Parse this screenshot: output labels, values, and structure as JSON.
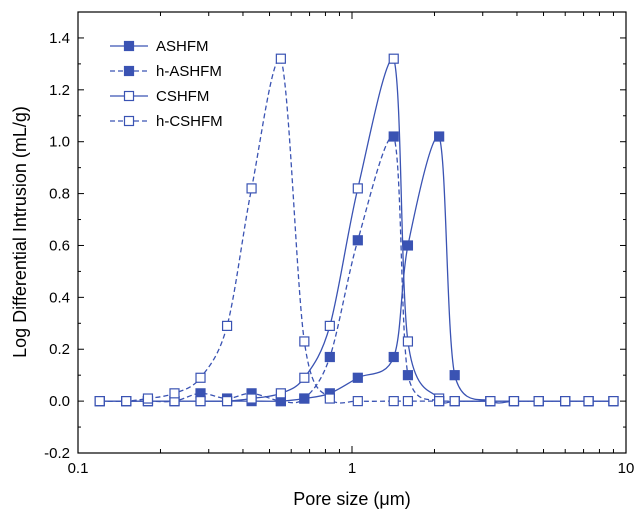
{
  "chart_data": {
    "type": "line",
    "xlabel": "Pore size (μm)",
    "ylabel": "Log Differential Intrusion (mL/g)",
    "xscale": "log",
    "xlim": [
      0.1,
      10
    ],
    "ylim": [
      -0.2,
      1.5
    ],
    "xticks": [
      {
        "value": 0.1,
        "label": "0.1"
      },
      {
        "value": 1,
        "label": "1"
      },
      {
        "value": 10,
        "label": "10"
      }
    ],
    "yticks": [
      {
        "value": -0.2,
        "label": "-0.2"
      },
      {
        "value": 0.0,
        "label": "0.0"
      },
      {
        "value": 0.2,
        "label": "0.2"
      },
      {
        "value": 0.4,
        "label": "0.4"
      },
      {
        "value": 0.6,
        "label": "0.6"
      },
      {
        "value": 0.8,
        "label": "0.8"
      },
      {
        "value": 1.0,
        "label": "1.0"
      },
      {
        "value": 1.2,
        "label": "1.2"
      },
      {
        "value": 1.4,
        "label": "1.4"
      }
    ],
    "legend_position": "top-left",
    "color": "#3a53b3",
    "series": [
      {
        "name": "ASHFM",
        "marker": "filled-square",
        "line": "solid",
        "x": [
          0.12,
          0.15,
          0.18,
          0.225,
          0.28,
          0.35,
          0.43,
          0.55,
          0.67,
          0.83,
          1.05,
          1.42,
          1.6,
          2.08,
          2.37,
          3.2,
          3.9,
          4.8,
          6.0,
          7.3,
          9.0
        ],
        "y": [
          0.0,
          0.0,
          0.0,
          0.0,
          0.0,
          0.0,
          0.0,
          0.0,
          0.01,
          0.03,
          0.09,
          0.17,
          0.6,
          1.02,
          0.1,
          0.0,
          0.0,
          0.0,
          0.0,
          0.0,
          0.0
        ]
      },
      {
        "name": "h-ASHFM",
        "marker": "filled-square",
        "line": "dashed",
        "x": [
          0.12,
          0.15,
          0.18,
          0.225,
          0.28,
          0.35,
          0.43,
          0.55,
          0.67,
          0.83,
          1.05,
          1.42,
          1.6,
          2.08,
          2.37,
          3.2,
          3.9,
          4.8,
          6.0,
          7.3,
          9.0
        ],
        "y": [
          0.0,
          0.0,
          0.0,
          0.0,
          0.03,
          0.01,
          0.03,
          0.0,
          0.01,
          0.17,
          0.62,
          1.02,
          0.1,
          0.0,
          0.0,
          0.0,
          0.0,
          0.0,
          0.0,
          0.0,
          0.0
        ]
      },
      {
        "name": "CSHFM",
        "marker": "open-square",
        "line": "solid",
        "x": [
          0.12,
          0.15,
          0.18,
          0.225,
          0.28,
          0.35,
          0.43,
          0.55,
          0.67,
          0.83,
          1.05,
          1.42,
          1.6,
          2.08,
          2.37,
          3.2,
          3.9,
          4.8,
          6.0,
          7.3,
          9.0
        ],
        "y": [
          0.0,
          0.0,
          0.0,
          0.0,
          0.0,
          0.0,
          0.01,
          0.03,
          0.09,
          0.29,
          0.82,
          1.32,
          0.23,
          0.01,
          0.0,
          0.0,
          0.0,
          0.0,
          0.0,
          0.0,
          0.0
        ]
      },
      {
        "name": "h-CSHFM",
        "marker": "open-square",
        "line": "dashed",
        "x": [
          0.12,
          0.15,
          0.18,
          0.225,
          0.28,
          0.35,
          0.43,
          0.55,
          0.67,
          0.83,
          1.05,
          1.42,
          1.6,
          2.08,
          2.37,
          3.2,
          3.9,
          4.8,
          6.0,
          7.3,
          9.0
        ],
        "y": [
          0.0,
          0.0,
          0.01,
          0.03,
          0.09,
          0.29,
          0.82,
          1.32,
          0.23,
          0.01,
          0.0,
          0.0,
          0.0,
          0.0,
          0.0,
          0.0,
          0.0,
          0.0,
          0.0,
          0.0,
          0.0
        ]
      }
    ]
  }
}
